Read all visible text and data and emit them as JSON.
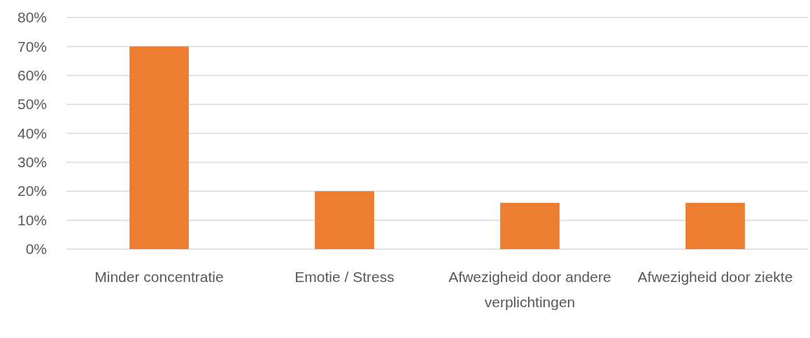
{
  "chart_data": {
    "type": "bar",
    "categories": [
      "Minder concentratie",
      "Emotie / Stress",
      "Afwezigheid door andere verplichtingen",
      "Afwezigheid door ziekte"
    ],
    "values": [
      70,
      20,
      16,
      16
    ],
    "color": "#ed7d31",
    "ylim": [
      0,
      80
    ],
    "yticks": [
      {
        "value": 0,
        "label": "0%"
      },
      {
        "value": 10,
        "label": "10%"
      },
      {
        "value": 20,
        "label": "20%"
      },
      {
        "value": 30,
        "label": "30%"
      },
      {
        "value": 40,
        "label": "40%"
      },
      {
        "value": 50,
        "label": "50%"
      },
      {
        "value": 60,
        "label": "60%"
      },
      {
        "value": 70,
        "label": "70%"
      },
      {
        "value": 80,
        "label": "80%"
      }
    ],
    "grid": "y"
  }
}
